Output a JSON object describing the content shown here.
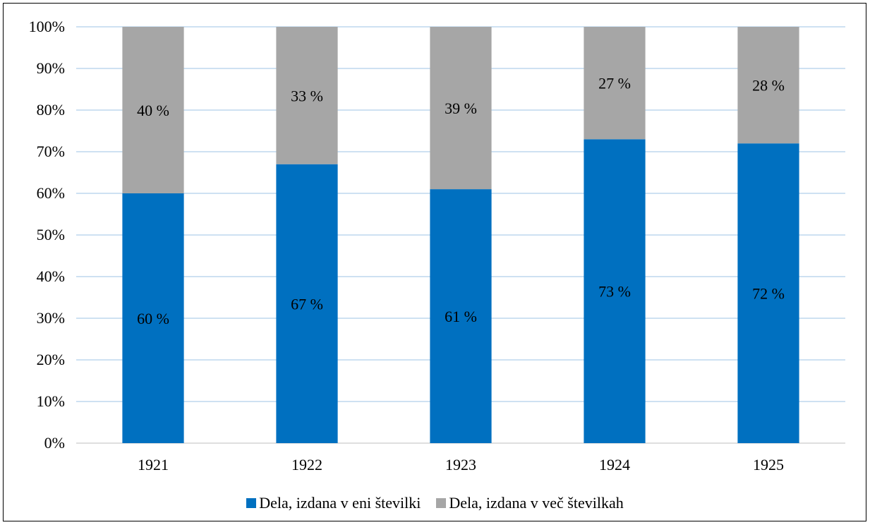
{
  "chart_data": {
    "type": "bar",
    "stacked": true,
    "categories": [
      "1921",
      "1922",
      "1923",
      "1924",
      "1925"
    ],
    "series": [
      {
        "name": "Dela, izdana v eni številki",
        "color": "#0070C0",
        "values": [
          60,
          67,
          61,
          73,
          72
        ],
        "labels": [
          "60 %",
          "67 %",
          "61 %",
          "73 %",
          "72 %"
        ]
      },
      {
        "name": "Dela, izdana v več številkah",
        "color": "#A6A6A6",
        "values": [
          40,
          33,
          39,
          27,
          28
        ],
        "labels": [
          "40 %",
          "33 %",
          "39 %",
          "27 %",
          "28 %"
        ]
      }
    ],
    "yticks": [
      "0%",
      "10%",
      "20%",
      "30%",
      "40%",
      "50%",
      "60%",
      "70%",
      "80%",
      "90%",
      "100%"
    ],
    "ylim": [
      0,
      100
    ],
    "grid": true,
    "gridcolor": "#9DC3E6",
    "legend_position": "bottom"
  }
}
